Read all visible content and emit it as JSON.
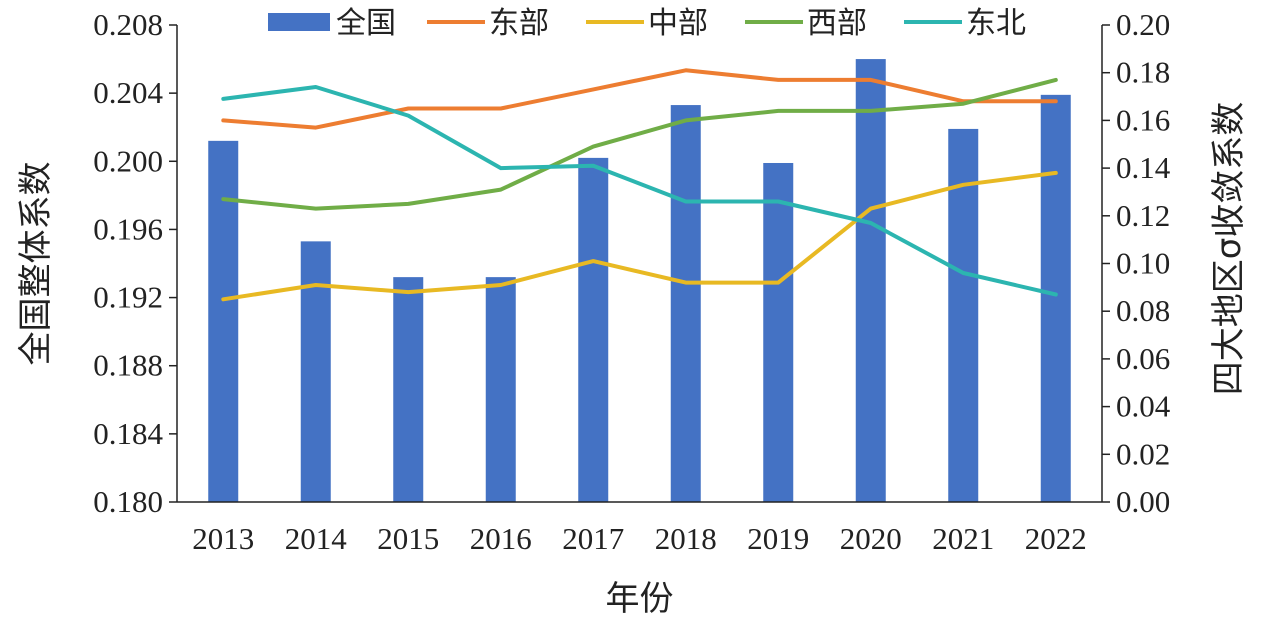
{
  "chart_data": {
    "type": "bar+line",
    "categories": [
      "2013",
      "2014",
      "2015",
      "2016",
      "2017",
      "2018",
      "2019",
      "2020",
      "2021",
      "2022"
    ],
    "xlabel": "年份",
    "ylabel_left": "全国整体系数",
    "ylabel_right": "四大地区σ收敛系数",
    "y_left": {
      "lim": [
        0.18,
        0.208
      ],
      "ticks": [
        "0.180",
        "0.184",
        "0.188",
        "0.192",
        "0.196",
        "0.200",
        "0.204",
        "0.208"
      ]
    },
    "y_right": {
      "lim": [
        0.0,
        0.2
      ],
      "ticks": [
        "0.00",
        "0.02",
        "0.04",
        "0.06",
        "0.08",
        "0.10",
        "0.12",
        "0.14",
        "0.16",
        "0.18",
        "0.20"
      ]
    },
    "bar_series": {
      "name": "全国",
      "color": "#4472c4",
      "axis": "left",
      "values": [
        0.2012,
        0.1953,
        0.1932,
        0.1932,
        0.2002,
        0.2033,
        0.1999,
        0.206,
        0.2019,
        0.2039
      ]
    },
    "line_series": [
      {
        "name": "东部",
        "color": "#ed7d31",
        "axis": "right",
        "values": [
          0.16,
          0.157,
          0.165,
          0.165,
          0.173,
          0.181,
          0.177,
          0.177,
          0.168,
          0.168
        ]
      },
      {
        "name": "中部",
        "color": "#e8b923",
        "axis": "right",
        "values": [
          0.085,
          0.091,
          0.088,
          0.091,
          0.101,
          0.092,
          0.092,
          0.123,
          0.133,
          0.138
        ]
      },
      {
        "name": "西部",
        "color": "#70ad47",
        "axis": "right",
        "values": [
          0.127,
          0.123,
          0.125,
          0.131,
          0.149,
          0.16,
          0.164,
          0.164,
          0.167,
          0.177
        ]
      },
      {
        "name": "东北",
        "color": "#2cb5b0",
        "axis": "right",
        "values": [
          0.169,
          0.174,
          0.162,
          0.14,
          0.141,
          0.126,
          0.126,
          0.117,
          0.096,
          0.087
        ]
      }
    ],
    "legend_position": "top",
    "grid": false
  }
}
